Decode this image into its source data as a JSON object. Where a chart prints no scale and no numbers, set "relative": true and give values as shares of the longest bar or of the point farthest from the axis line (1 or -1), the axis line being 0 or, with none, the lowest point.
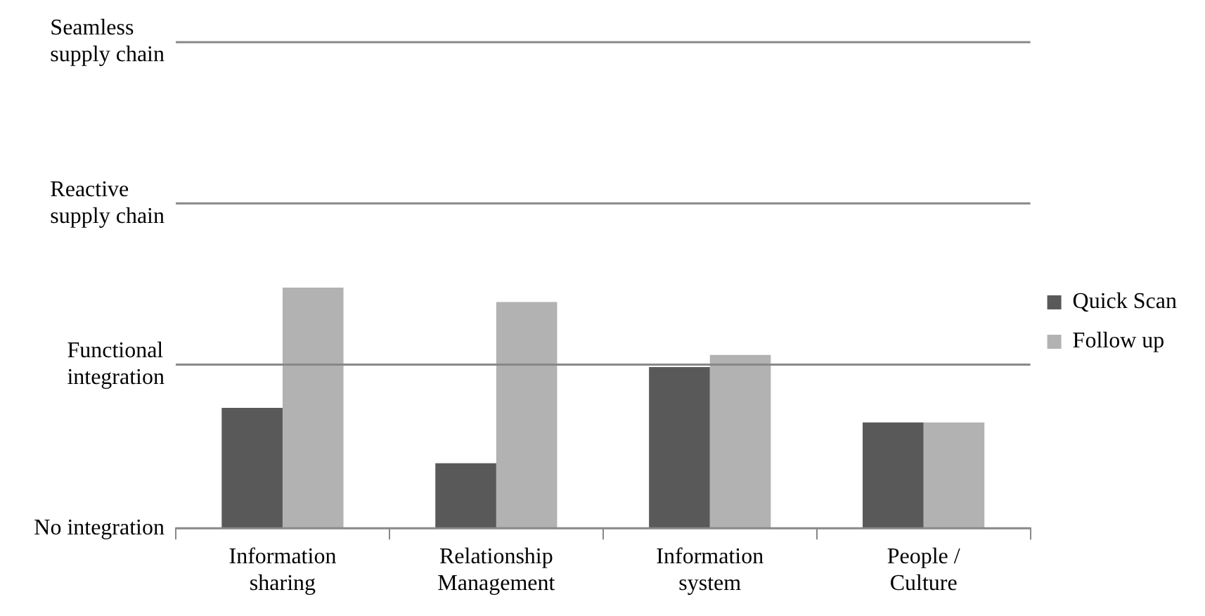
{
  "chart_data": {
    "type": "bar",
    "relative": true,
    "categories": [
      "Information sharing",
      "Relationship Management",
      "Information system",
      "People / Culture"
    ],
    "series": [
      {
        "name": "Quick Scan",
        "color": "#595959",
        "values": [
          0.5,
          0.27,
          0.67,
          0.44
        ]
      },
      {
        "name": "Follow up",
        "color": "#b2b2b2",
        "values": [
          1,
          0.94,
          0.72,
          0.44
        ]
      }
    ],
    "ref_lines": [
      {
        "axis": "y",
        "value": 0,
        "label": "No integration",
        "color": "#888888"
      },
      {
        "axis": "y",
        "value": 0.68,
        "label": "Functional integration",
        "color": "#888888"
      },
      {
        "axis": "y",
        "value": 1.35,
        "label": "Reactive supply chain",
        "color": "#888888"
      },
      {
        "axis": "y",
        "value": 2.02,
        "label": "Seamless supply chain",
        "color": "#888888"
      }
    ],
    "legend": "right"
  }
}
